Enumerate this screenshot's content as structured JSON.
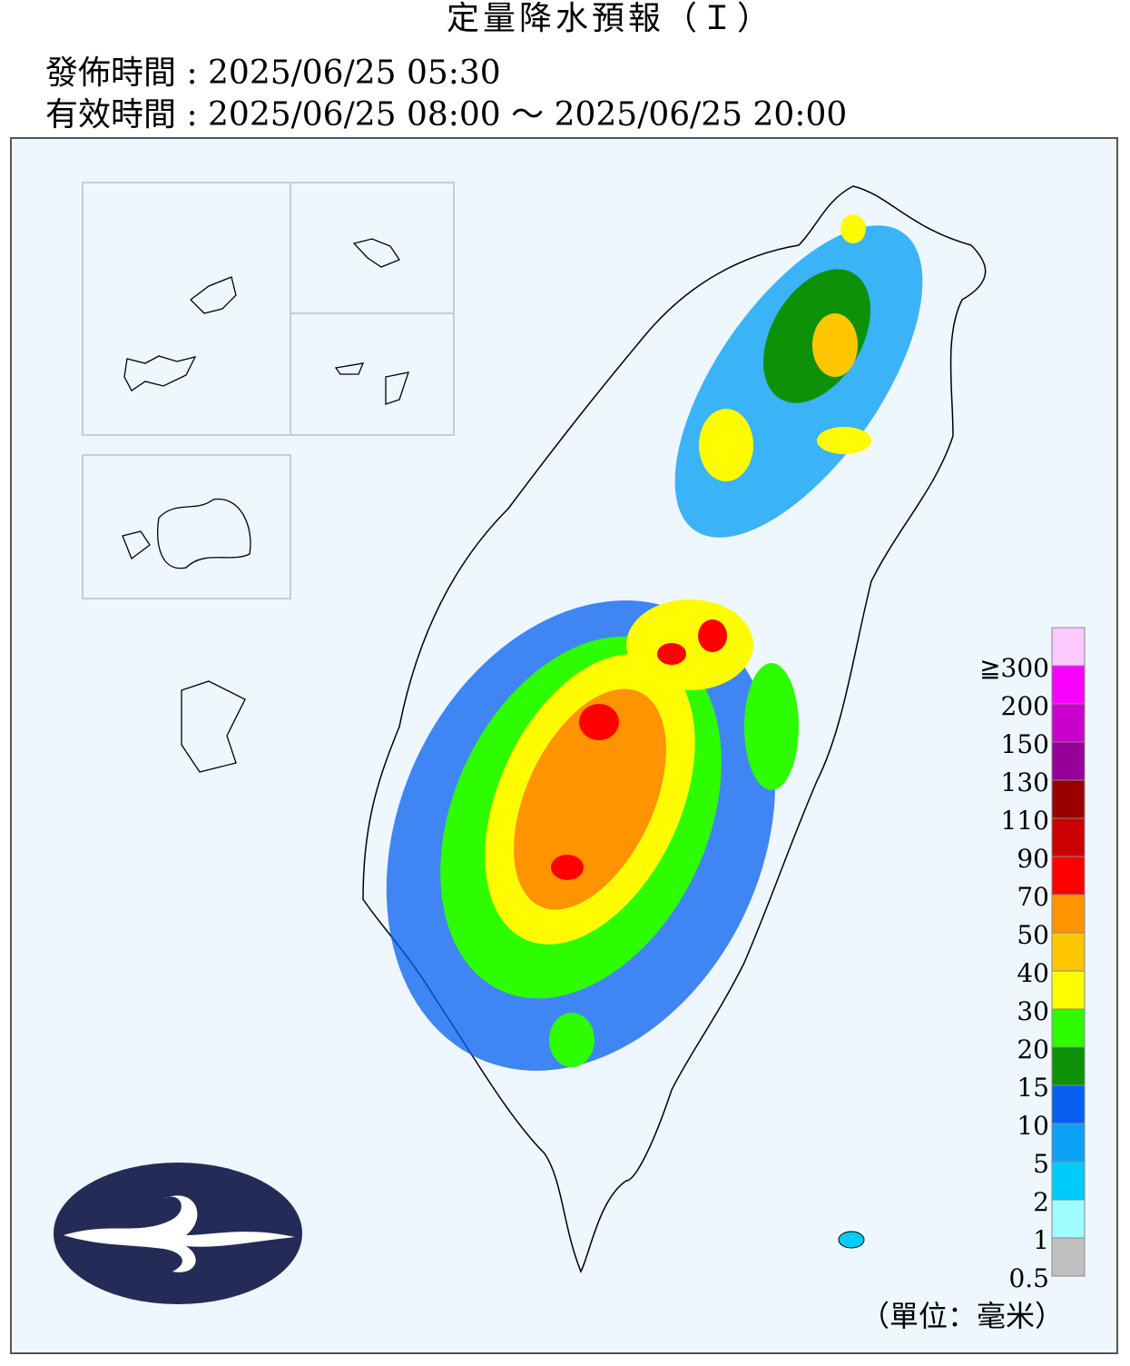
{
  "header": {
    "title": "定量降水預報（Ｉ）",
    "issue_time": "發佈時間 : 2025/06/25 05:30",
    "valid_time": "有效時間 : 2025/06/25 08:00 ～ 2025/06/25 20:00"
  },
  "legend": {
    "labels": [
      "0.5",
      "1",
      "2",
      "5",
      "10",
      "15",
      "20",
      "30",
      "40",
      "50",
      "70",
      "90",
      "110",
      "130",
      "150",
      "200",
      "≧300"
    ],
    "colors": [
      "#c0c0c0",
      "#9ffcff",
      "#00ccfb",
      "#0da1f5",
      "#065ff0",
      "#0d9207",
      "#2efc00",
      "#fffb03",
      "#ffc700",
      "#ff9300",
      "#ff0000",
      "#cc0000",
      "#990000",
      "#960099",
      "#c900cc",
      "#fa00ff",
      "#fdc9ff"
    ],
    "unit": "（單位：毫米）"
  }
}
